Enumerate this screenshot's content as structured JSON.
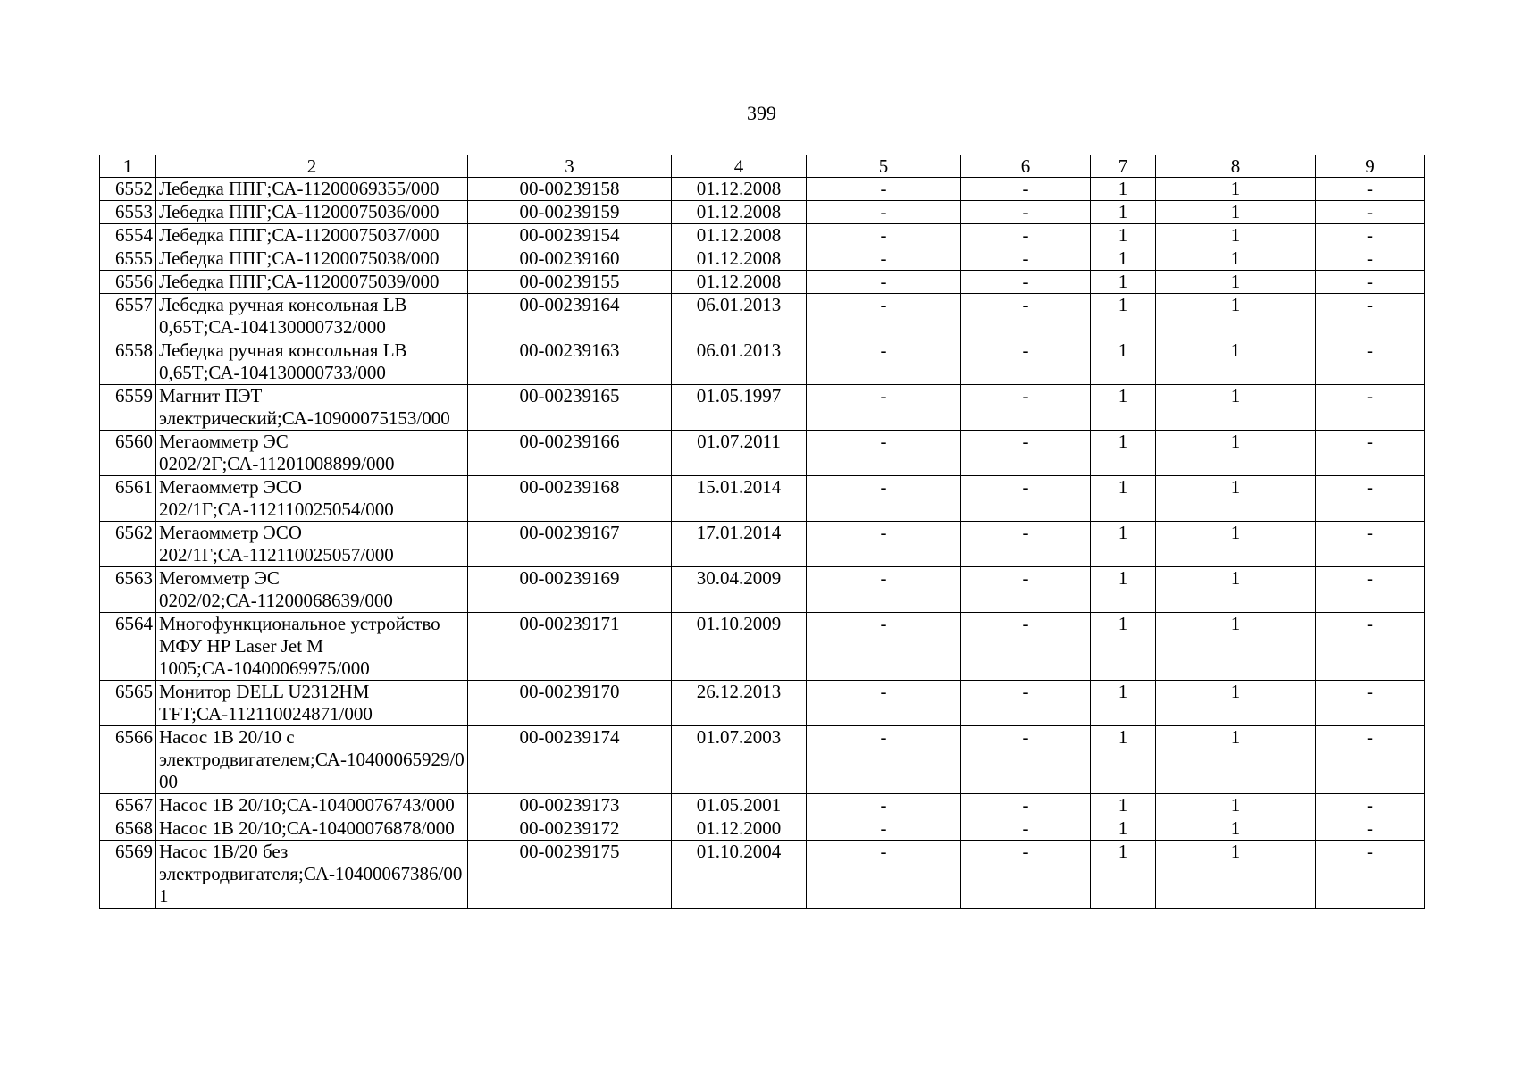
{
  "page_number": "399",
  "table": {
    "headers": [
      "1",
      "2",
      "3",
      "4",
      "5",
      "6",
      "7",
      "8",
      "9"
    ],
    "rows": [
      [
        "6552",
        "Лебедка ППГ;СА-11200069355/000",
        "00-00239158",
        "01.12.2008",
        "-",
        "-",
        "1",
        "1",
        "-"
      ],
      [
        "6553",
        "Лебедка ППГ;СА-11200075036/000",
        "00-00239159",
        "01.12.2008",
        "-",
        "-",
        "1",
        "1",
        "-"
      ],
      [
        "6554",
        "Лебедка ППГ;СА-11200075037/000",
        "00-00239154",
        "01.12.2008",
        "-",
        "-",
        "1",
        "1",
        "-"
      ],
      [
        "6555",
        "Лебедка ППГ;СА-11200075038/000",
        "00-00239160",
        "01.12.2008",
        "-",
        "-",
        "1",
        "1",
        "-"
      ],
      [
        "6556",
        "Лебедка ППГ;СА-11200075039/000",
        "00-00239155",
        "01.12.2008",
        "-",
        "-",
        "1",
        "1",
        "-"
      ],
      [
        "6557",
        "Лебедка ручная консольная LB 0,65Т;СА-104130000732/000",
        "00-00239164",
        "06.01.2013",
        "-",
        "-",
        "1",
        "1",
        "-"
      ],
      [
        "6558",
        "Лебедка ручная консольная LB 0,65Т;СА-104130000733/000",
        "00-00239163",
        "06.01.2013",
        "-",
        "-",
        "1",
        "1",
        "-"
      ],
      [
        "6559",
        "Магнит ПЭТ электрический;СА-10900075153/000",
        "00-00239165",
        "01.05.1997",
        "-",
        "-",
        "1",
        "1",
        "-"
      ],
      [
        "6560",
        "Мегаомметр ЭС 0202/2Г;СА-11201008899/000",
        "00-00239166",
        "01.07.2011",
        "-",
        "-",
        "1",
        "1",
        "-"
      ],
      [
        "6561",
        "Мегаомметр ЭСО 202/1Г;СА-112110025054/000",
        "00-00239168",
        "15.01.2014",
        "-",
        "-",
        "1",
        "1",
        "-"
      ],
      [
        "6562",
        "Мегаомметр ЭСО 202/1Г;СА-112110025057/000",
        "00-00239167",
        "17.01.2014",
        "-",
        "-",
        "1",
        "1",
        "-"
      ],
      [
        "6563",
        "Мегомметр ЭС 0202/02;СА-11200068639/000",
        "00-00239169",
        "30.04.2009",
        "-",
        "-",
        "1",
        "1",
        "-"
      ],
      [
        "6564",
        "Многофункциональное устройство МФУ HP Laser Jet M 1005;СА-10400069975/000",
        "00-00239171",
        "01.10.2009",
        "-",
        "-",
        "1",
        "1",
        "-"
      ],
      [
        "6565",
        "Монитор DELL U2312HM TFT;СА-112110024871/000",
        "00-00239170",
        "26.12.2013",
        "-",
        "-",
        "1",
        "1",
        "-"
      ],
      [
        "6566",
        "Насос 1В 20/10 с электродвигателем;СА-10400065929/000",
        "00-00239174",
        "01.07.2003",
        "-",
        "-",
        "1",
        "1",
        "-"
      ],
      [
        "6567",
        "Насос 1В 20/10;СА-10400076743/000",
        "00-00239173",
        "01.05.2001",
        "-",
        "-",
        "1",
        "1",
        "-"
      ],
      [
        "6568",
        "Насос 1В 20/10;СА-10400076878/000",
        "00-00239172",
        "01.12.2000",
        "-",
        "-",
        "1",
        "1",
        "-"
      ],
      [
        "6569",
        "Насос 1В/20 без электродвигателя;СА-10400067386/001",
        "00-00239175",
        "01.10.2004",
        "-",
        "-",
        "1",
        "1",
        "-"
      ]
    ]
  }
}
